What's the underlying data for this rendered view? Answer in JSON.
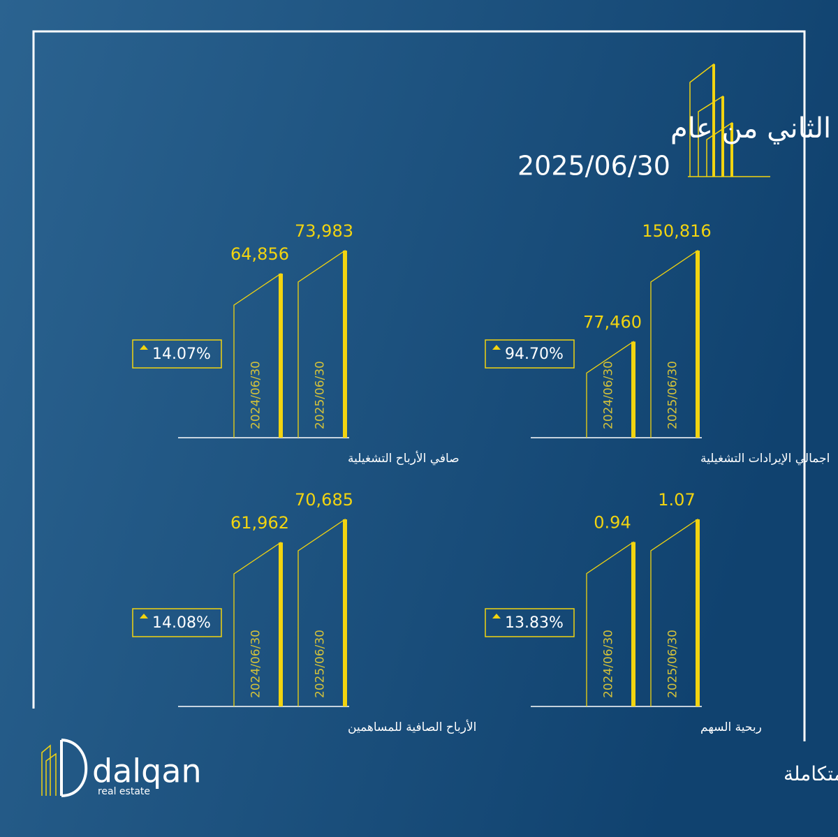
{
  "header": {
    "title": "البيانات المالية للربع الثاني من عام",
    "date": "2025/06/30"
  },
  "chart_data": [
    {
      "type": "bar",
      "title": "صافي الأرباح التشغيلية",
      "categories": [
        "2024/06/30",
        "2025/06/30"
      ],
      "values": [
        64856,
        73983
      ],
      "value_labels": [
        "64,856",
        "73,983"
      ],
      "annotation": "14.07%",
      "color": "#f2d410"
    },
    {
      "type": "bar",
      "title": "اجمالي الإيرادات التشغيلية",
      "categories": [
        "2024/06/30",
        "2025/06/30"
      ],
      "values": [
        77460,
        150816
      ],
      "value_labels": [
        "77,460",
        "150,816"
      ],
      "annotation": "94.70%",
      "color": "#f2d410"
    },
    {
      "type": "bar",
      "title": "الأرباح الصافية للمساهمين",
      "categories": [
        "2024/06/30",
        "2025/06/30"
      ],
      "values": [
        61962,
        70685
      ],
      "value_labels": [
        "61,962",
        "70,685"
      ],
      "annotation": "14.08%",
      "color": "#f2d410"
    },
    {
      "type": "bar",
      "title": "ربحية السهم",
      "categories": [
        "2024/06/30",
        "2025/06/30"
      ],
      "values": [
        0.94,
        1.07
      ],
      "annotation": "13.83%",
      "color": "#f2d410"
    }
  ],
  "footer": {
    "brand": "dalqan",
    "brand_sub": "real estate",
    "tagline": "خدمات عقارية متكاملة"
  }
}
